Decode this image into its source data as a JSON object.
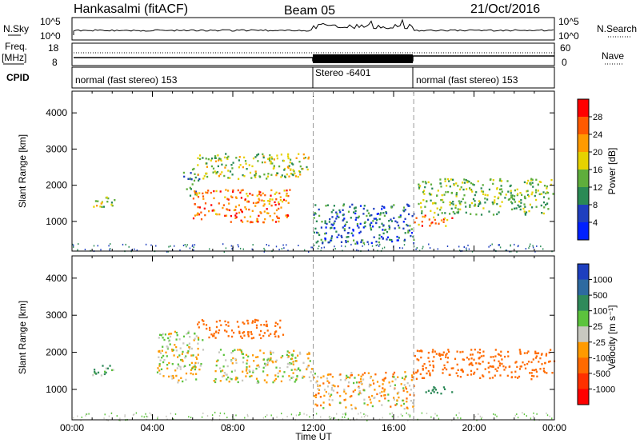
{
  "header": {
    "site": "Hankasalmi (fitACF)",
    "beam": "Beam 05",
    "date": "21/Oct/2016"
  },
  "top_panels": {
    "left_labels": [
      "N.Sky",
      "Freq.",
      "[MHz]",
      "CPID"
    ],
    "right_labels": [
      "N.Search",
      "Nave"
    ],
    "noise_ticks": [
      "10^5",
      "10^0"
    ],
    "noise_ticks_right": [
      "10^5",
      "10^0"
    ],
    "freq_ticks": [
      "18",
      "8"
    ],
    "nave_ticks": [
      "60",
      "0"
    ],
    "cpid_segments": [
      {
        "label": "normal (fast stereo) 153",
        "start_hour": 0,
        "end_hour": 12
      },
      {
        "label": "Stereo -6401",
        "start_hour": 12,
        "end_hour": 17
      },
      {
        "label": "normal (fast stereo) 153",
        "start_hour": 17,
        "end_hour": 24
      }
    ]
  },
  "power_colorbar": {
    "label": "Power [dB]",
    "ticks": [
      "28",
      "24",
      "20",
      "16",
      "12",
      "8",
      "4"
    ],
    "colors": [
      "#ff0000",
      "#ff5a00",
      "#ff9a00",
      "#e6d200",
      "#5fae3c",
      "#2a8a55",
      "#1f3fbf",
      "#0020ff"
    ]
  },
  "velocity_colorbar": {
    "label": "Velocity [m s⁻¹]",
    "ticks": [
      "1000",
      "500",
      "100",
      "25",
      "-25",
      "-100",
      "-500",
      "-1000"
    ],
    "colors": [
      "#1d3fbf",
      "#2d6aa0",
      "#2f8a5a",
      "#5cc33d",
      "#c8c8c0",
      "#ff9a00",
      "#ff6a00",
      "#ff3000",
      "#ff0000"
    ]
  },
  "chart_data": [
    {
      "type": "heatmap",
      "panel": "power",
      "ylabel": "Slant Range [km]",
      "xlabel": "Time UT",
      "xlim_hours": [
        0,
        24
      ],
      "ylim_km": [
        180,
        4600
      ],
      "x_tick_labels": [
        "00:00",
        "04:00",
        "08:00",
        "12:00",
        "16:00",
        "20:00",
        "00:00"
      ],
      "y_tick_labels": [
        "1000",
        "2000",
        "3000",
        "4000"
      ],
      "echo_regions": [
        {
          "t0": 1.0,
          "t1": 2.2,
          "r0": 1400,
          "r1": 1700,
          "dB": 14
        },
        {
          "t0": 5.5,
          "t1": 6.3,
          "r0": 1700,
          "r1": 2500,
          "dB": 8
        },
        {
          "t0": 6.0,
          "t1": 10.8,
          "r0": 1000,
          "r1": 1900,
          "dB": 22
        },
        {
          "t0": 6.2,
          "t1": 11.8,
          "r0": 2200,
          "r1": 2900,
          "dB": 14
        },
        {
          "t0": 12.0,
          "t1": 17.0,
          "r0": 400,
          "r1": 1500,
          "dB": 6
        },
        {
          "t0": 17.0,
          "t1": 19.0,
          "r0": 900,
          "r1": 1200,
          "dB": 22
        },
        {
          "t0": 17.2,
          "t1": 24.0,
          "r0": 1200,
          "r1": 2200,
          "dB": 12
        }
      ]
    },
    {
      "type": "heatmap",
      "panel": "velocity",
      "ylabel": "Slant Range [km]",
      "xlabel": "Time UT",
      "xlim_hours": [
        0,
        24
      ],
      "ylim_km": [
        180,
        4600
      ],
      "x_tick_labels": [
        "00:00",
        "04:00",
        "08:00",
        "12:00",
        "16:00",
        "20:00",
        "00:00"
      ],
      "y_tick_labels": [
        "1000",
        "2000",
        "3000",
        "4000"
      ],
      "echo_regions": [
        {
          "t0": 1.0,
          "t1": 2.2,
          "r0": 1400,
          "r1": 1700,
          "v": 80
        },
        {
          "t0": 4.2,
          "t1": 6.5,
          "r0": 1200,
          "r1": 2600,
          "v": 0
        },
        {
          "t0": 6.2,
          "t1": 10.5,
          "r0": 2400,
          "r1": 2900,
          "v": -300
        },
        {
          "t0": 7.0,
          "t1": 12.0,
          "r0": 1200,
          "r1": 2100,
          "v": 0
        },
        {
          "t0": 12.0,
          "t1": 17.0,
          "r0": 500,
          "r1": 1500,
          "v": -50
        },
        {
          "t0": 17.0,
          "t1": 24.0,
          "r0": 1300,
          "r1": 2100,
          "v": -300
        },
        {
          "t0": 17.5,
          "t1": 19.0,
          "r0": 900,
          "r1": 1100,
          "v": 200
        }
      ]
    }
  ]
}
